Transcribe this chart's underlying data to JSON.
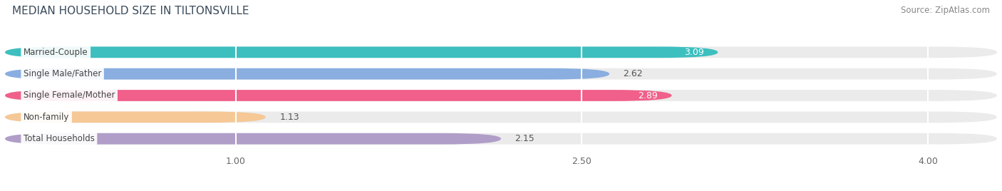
{
  "title": "MEDIAN HOUSEHOLD SIZE IN TILTONSVILLE",
  "source": "Source: ZipAtlas.com",
  "categories": [
    "Married-Couple",
    "Single Male/Father",
    "Single Female/Mother",
    "Non-family",
    "Total Households"
  ],
  "values": [
    3.09,
    2.62,
    2.89,
    1.13,
    2.15
  ],
  "bar_colors": [
    "#3dbfbf",
    "#8aaee0",
    "#f0608a",
    "#f5c896",
    "#b09ec8"
  ],
  "value_inside": [
    true,
    false,
    true,
    false,
    false
  ],
  "xlim_left": 0.0,
  "xlim_right": 4.3,
  "data_min": 1.0,
  "xticks": [
    1.0,
    2.5,
    4.0
  ],
  "background_color": "#ffffff",
  "bar_bg_color": "#ebebeb",
  "title_fontsize": 11,
  "source_fontsize": 8.5,
  "bar_height": 0.52,
  "label_font_size": 8.5,
  "value_font_size": 9.0,
  "title_color": "#3a4a5a",
  "source_color": "#888888",
  "value_inside_color": "white",
  "value_outside_color": "#555555",
  "cat_label_color": "#444444",
  "grid_color": "#cccccc"
}
